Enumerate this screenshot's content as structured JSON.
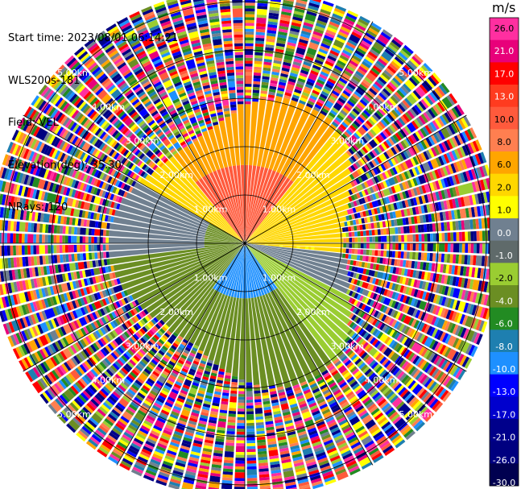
{
  "header": {
    "start_time": "Start time: 2023/08/01 06:14:21",
    "instrument": "WLS200s-181",
    "field": "Field: VEL",
    "elevation": "Elevation(deg): 35.30",
    "nrays": "NRays: 120"
  },
  "colorbar": {
    "unit": "m/s",
    "tick_labels": [
      "26.0",
      "21.0",
      "17.0",
      "13.0",
      "10.0",
      "8.0",
      "6.0",
      "2.0",
      "1.0",
      "0.0",
      "-1.0",
      "-2.0",
      "-4.0",
      "-6.0",
      "-8.0",
      "-10.0",
      "-13.0",
      "-17.0",
      "-21.0",
      "-26.0",
      "-30.0"
    ],
    "colors": [
      "#ff2fa0",
      "#e8007a",
      "#ff0000",
      "#ff3b1f",
      "#ff5a3c",
      "#ff7f50",
      "#ffa500",
      "#ffd700",
      "#ffff00",
      "#708090",
      "#5f6a6a",
      "#9acd32",
      "#6b8e23",
      "#228b22",
      "#1e7fb0",
      "#1e90ff",
      "#0000ff",
      "#0000cd",
      "#00008b",
      "#000080",
      "#000050"
    ]
  },
  "chart_data": {
    "type": "heatmap",
    "projection": "polar PPI",
    "field": "VEL",
    "units": "m/s",
    "elevation_deg": 35.3,
    "n_rays": 120,
    "range_ring_labels_km": [
      "1.00km",
      "2.00km",
      "3.00km",
      "4.00km",
      "5.00km"
    ],
    "range_rings_km": [
      1,
      2,
      3,
      4,
      5
    ],
    "approx_field_pattern": [
      {
        "az_from": 300,
        "az_to": 360,
        "range_to_km": 3.0,
        "velocity": 4
      },
      {
        "az_from": 0,
        "az_to": 100,
        "range_to_km": 3.0,
        "velocity": 3
      },
      {
        "az_from": 330,
        "az_to": 45,
        "range_to_km": 1.5,
        "velocity": 10
      },
      {
        "az_from": 100,
        "az_to": 120,
        "range_to_km": 3.0,
        "velocity": 0
      },
      {
        "az_from": 120,
        "az_to": 180,
        "range_to_km": 3.2,
        "velocity": -3
      },
      {
        "az_from": 140,
        "az_to": 220,
        "range_to_km": 1.0,
        "velocity": -8
      },
      {
        "az_from": 180,
        "az_to": 290,
        "range_to_km": 3.2,
        "velocity": -4
      },
      {
        "az_from": 260,
        "az_to": 300,
        "range_to_km": 3.0,
        "velocity": 0
      }
    ],
    "noise_beyond_km": 3.1,
    "max_range_km": 5.3
  }
}
